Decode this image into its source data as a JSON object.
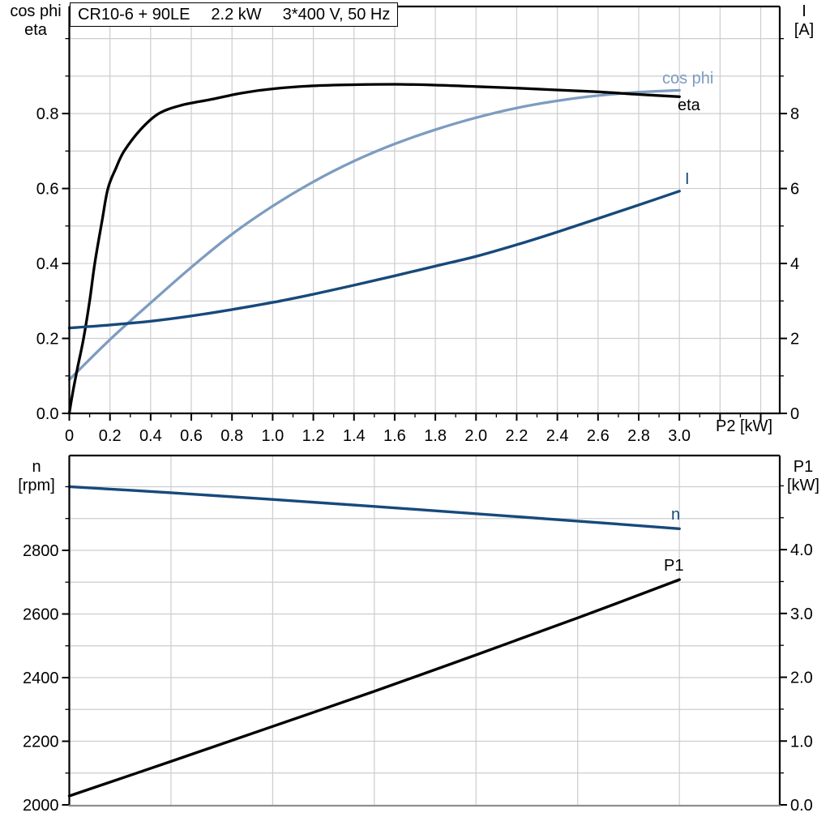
{
  "title": {
    "model": "CR10-6 + 90LE",
    "power": "2.2 kW",
    "voltage": "3*400 V, 50 Hz"
  },
  "labels": {
    "p1_yleft_line1": "cos phi",
    "p1_yleft_line2": "eta",
    "p1_yright_line1": "I",
    "p1_yright_line2": "[A]",
    "p1_xlabel": "P2 [kW]",
    "p2_yleft_line1": "n",
    "p2_yleft_line2": "[rpm]",
    "p2_yright_line1": "P1",
    "p2_yright_line2": "[kW]"
  },
  "colors": {
    "dark_blue": "#17497B",
    "light_blue": "#7D9CC0",
    "black": "#000000",
    "grid": "#CDCDD1",
    "frame": "#000000",
    "cut_edge": "#8F8F8F"
  },
  "chart_data": [
    {
      "type": "line",
      "title": "CR10-6 + 90LE  2.2 kW  3*400 V, 50 Hz",
      "x_axis": {
        "label": "P2 [kW]",
        "range": [
          0,
          3.4936
        ],
        "major_step": 0.2,
        "minor_step": 0.1,
        "major_ticks": [
          0,
          0.2,
          0.4,
          0.6,
          0.8,
          1.0,
          1.2,
          1.4,
          1.6,
          1.8,
          2.0,
          2.2,
          2.4,
          2.6,
          2.8,
          3.0
        ],
        "tick_labels": [
          "0",
          "0.2",
          "0.4",
          "0.6",
          "0.8",
          "1.0",
          "1.2",
          "1.4",
          "1.6",
          "1.8",
          "2.0",
          "2.2",
          "2.4",
          "2.6",
          "2.8",
          "3.0"
        ]
      },
      "y_left": {
        "label": "cos phi / eta",
        "range": [
          0,
          1.0857
        ],
        "minor_step": 0.1,
        "major_ticks": [
          0,
          0.2,
          0.4,
          0.6,
          0.8
        ],
        "tick_labels": [
          "0.0",
          "0.2",
          "0.4",
          "0.6",
          "0.8"
        ]
      },
      "y_right": {
        "label": "I [A]",
        "range": [
          0,
          10.857
        ],
        "minor_step": 1,
        "major_ticks": [
          0,
          2,
          4,
          6,
          8
        ],
        "tick_labels": [
          "0",
          "2",
          "4",
          "6",
          "8"
        ]
      },
      "grid": {
        "x_step": 0.2,
        "y_step": 0.1
      },
      "series": [
        {
          "name": "cos phi",
          "axis": "left",
          "color": "#7D9CC0",
          "width": 3.3,
          "x": [
            0,
            0.2,
            0.4,
            0.6,
            0.8,
            1.0,
            1.2,
            1.4,
            1.6,
            1.8,
            2.0,
            2.2,
            2.4,
            2.6,
            2.8,
            3.0
          ],
          "y": [
            0.09,
            0.197,
            0.295,
            0.39,
            0.478,
            0.553,
            0.618,
            0.673,
            0.719,
            0.757,
            0.789,
            0.815,
            0.834,
            0.848,
            0.857,
            0.862
          ]
        },
        {
          "name": "eta",
          "axis": "left",
          "color": "#000000",
          "width": 3.3,
          "x": [
            0,
            0.015,
            0.04,
            0.07,
            0.1,
            0.125,
            0.16,
            0.19,
            0.23,
            0.27,
            0.35,
            0.44,
            0.55,
            0.7,
            0.85,
            1.0,
            1.2,
            1.4,
            1.6,
            1.8,
            2.0,
            2.2,
            2.4,
            2.6,
            2.8,
            3.0
          ],
          "y": [
            0,
            0.05,
            0.12,
            0.2,
            0.3,
            0.4,
            0.51,
            0.6,
            0.655,
            0.7,
            0.757,
            0.8,
            0.822,
            0.838,
            0.855,
            0.866,
            0.874,
            0.877,
            0.878,
            0.876,
            0.872,
            0.868,
            0.863,
            0.858,
            0.851,
            0.845
          ]
        },
        {
          "name": "I",
          "axis": "right",
          "color": "#17497B",
          "width": 3.4,
          "x": [
            0,
            0.2,
            0.4,
            0.6,
            0.8,
            1.0,
            1.2,
            1.4,
            1.6,
            1.8,
            2.0,
            2.2,
            2.4,
            2.6,
            2.8,
            3.0
          ],
          "y": [
            2.28,
            2.36,
            2.46,
            2.6,
            2.77,
            2.96,
            3.18,
            3.42,
            3.67,
            3.93,
            4.19,
            4.5,
            4.84,
            5.2,
            5.56,
            5.93
          ]
        }
      ]
    },
    {
      "type": "line",
      "x_axis": {
        "label": "",
        "range": [
          0,
          3.4936
        ],
        "major_step": 0.2,
        "minor_step": 0.1,
        "major_ticks": [],
        "tick_labels": []
      },
      "y_left": {
        "label": "n [rpm]",
        "range": [
          1997.45,
          3098
        ],
        "minor_step": 100,
        "major_ticks": [
          2000,
          2200,
          2400,
          2600,
          2800
        ],
        "tick_labels": [
          "2000",
          "2200",
          "2400",
          "2600",
          "2800"
        ]
      },
      "y_right": {
        "label": "P1 [kW]",
        "range": [
          -0.013,
          5.475
        ],
        "minor_step": 0.5,
        "major_ticks": [
          0,
          1,
          2,
          3,
          4
        ],
        "tick_labels": [
          "0.0",
          "1.0",
          "2.0",
          "3.0",
          "4.0"
        ]
      },
      "grid": {
        "x_step": 0.5,
        "y_step": 100
      },
      "series": [
        {
          "name": "n",
          "axis": "left",
          "color": "#17497B",
          "width": 3.4,
          "x": [
            0,
            0.5,
            1.0,
            1.5,
            2.0,
            2.5,
            3.0
          ],
          "y": [
            3000,
            2981,
            2960,
            2938,
            2915,
            2892,
            2868
          ]
        },
        {
          "name": "P1",
          "axis": "right",
          "color": "#000000",
          "width": 3.4,
          "x": [
            0,
            0.5,
            1.0,
            1.5,
            2.0,
            2.5,
            3.0
          ],
          "y": [
            0.14,
            0.68,
            1.23,
            1.78,
            2.35,
            2.93,
            3.53
          ]
        }
      ]
    }
  ]
}
